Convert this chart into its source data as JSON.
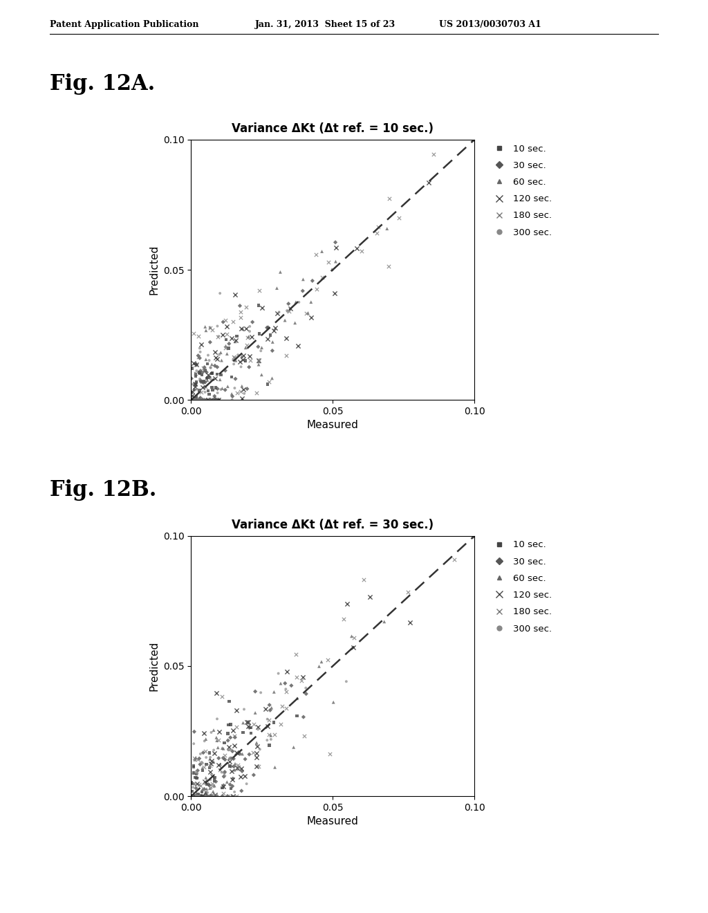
{
  "fig_label_A": "Fig. 12A.",
  "fig_label_B": "Fig. 12B.",
  "title_A": "Variance ΔKt (Δt ref. = 10 sec.)",
  "title_B": "Variance ΔKt (Δt ref. = 30 sec.)",
  "xlabel": "Measured",
  "ylabel": "Predicted",
  "xlim": [
    0.0,
    0.1
  ],
  "ylim": [
    0.0,
    0.1
  ],
  "xticks": [
    0.0,
    0.05,
    0.1
  ],
  "yticks": [
    0.0,
    0.05,
    0.1
  ],
  "header_left": "Patent Application Publication",
  "header_mid": "Jan. 31, 2013  Sheet 15 of 23",
  "header_right": "US 2013/0030703 A1",
  "legend_labels": [
    "10 sec.",
    "30 sec.",
    "60 sec.",
    "120 sec.",
    "180 sec.",
    "300 sec."
  ],
  "background_color": "#ffffff",
  "dashed_line_color": "#333333",
  "random_seed_A": 42,
  "random_seed_B": 99,
  "n_points_per_series": 50
}
